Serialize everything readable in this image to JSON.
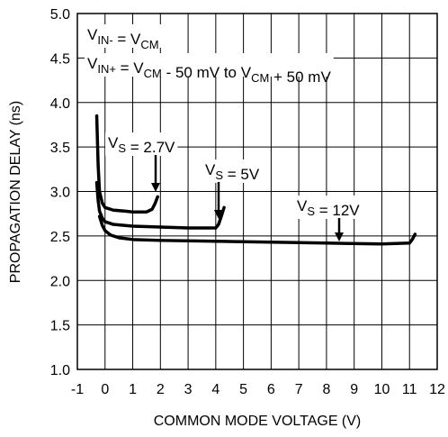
{
  "chart_data": {
    "type": "line",
    "x_label": "COMMON MODE VOLTAGE (V)",
    "y_label": "PROPAGATION DELAY (ns)",
    "xlim": [
      -1,
      12
    ],
    "xticks": [
      -1,
      0,
      1,
      2,
      3,
      4,
      5,
      6,
      7,
      8,
      9,
      10,
      11,
      12
    ],
    "ylim": [
      1,
      5
    ],
    "yticks": [
      {
        "value": 1,
        "label": "1.0"
      },
      1.5,
      {
        "value": 2,
        "label": "2.0"
      },
      2.5,
      {
        "value": 3,
        "label": "3.0"
      },
      3.5,
      {
        "value": 4,
        "label": "4.0"
      },
      4.5,
      {
        "value": 5,
        "label": "5.0"
      }
    ],
    "grid": true,
    "series": [
      {
        "color": "#000000",
        "x": [
          -0.3,
          -0.25,
          -0.2,
          -0.1,
          0,
          0.3,
          0.7,
          1,
          1.5,
          1.7,
          1.8,
          1.9
        ],
        "values": [
          3.85,
          3.3,
          3.0,
          2.87,
          2.82,
          2.79,
          2.78,
          2.77,
          2.77,
          2.8,
          2.86,
          2.94
        ]
      },
      {
        "color": "#000000",
        "x": [
          -0.3,
          -0.25,
          -0.2,
          -0.1,
          0,
          0.3,
          1,
          2,
          3,
          4,
          4.1,
          4.2,
          4.3
        ],
        "values": [
          3.1,
          2.9,
          2.78,
          2.7,
          2.66,
          2.63,
          2.61,
          2.6,
          2.59,
          2.59,
          2.63,
          2.72,
          2.82
        ]
      },
      {
        "color": "#000000",
        "x": [
          -0.2,
          -0.1,
          0,
          0.2,
          0.5,
          1,
          2,
          4,
          6,
          8,
          10,
          11,
          11.1,
          11.2
        ],
        "values": [
          2.72,
          2.62,
          2.56,
          2.51,
          2.48,
          2.46,
          2.45,
          2.44,
          2.43,
          2.42,
          2.41,
          2.42,
          2.46,
          2.52
        ]
      }
    ],
    "annotations": [
      {
        "parts": [
          {
            "text": "V"
          },
          {
            "sub": "IN-"
          },
          {
            "text": " = V"
          },
          {
            "sub": "CM"
          }
        ]
      },
      {
        "parts": [
          {
            "text": "V"
          },
          {
            "sub": "IN+"
          },
          {
            "text": " = V"
          },
          {
            "sub": "CM"
          },
          {
            "text": " - 50 mV to V"
          },
          {
            "sub": "CM"
          },
          {
            "text": " + 50 mV"
          }
        ]
      },
      {
        "parts": [
          {
            "text": "V"
          },
          {
            "sub": "S"
          },
          {
            "text": " = 2.7V"
          }
        ]
      },
      {
        "parts": [
          {
            "text": "V"
          },
          {
            "sub": "S"
          },
          {
            "text": " = 5V"
          }
        ]
      },
      {
        "parts": [
          {
            "text": "V"
          },
          {
            "sub": "S"
          },
          {
            "text": " = 12V"
          }
        ]
      }
    ]
  }
}
